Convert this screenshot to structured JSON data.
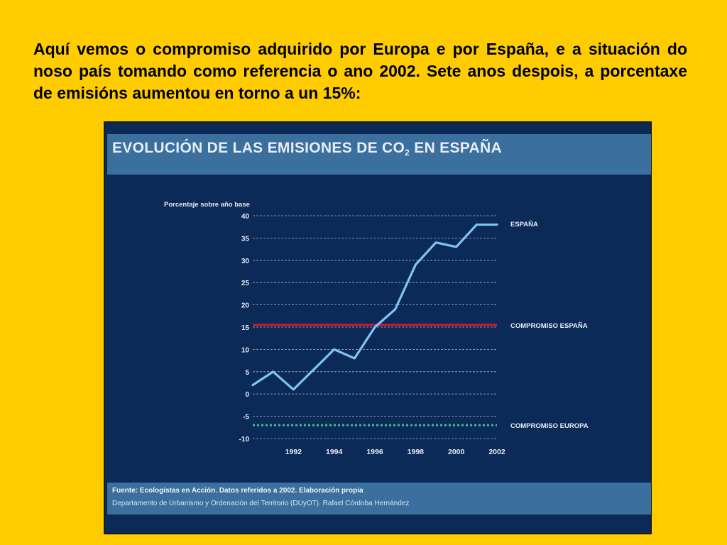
{
  "slide": {
    "text": "Aquí vemos o compromiso adquirido por Europa e por España, e a situación do noso país tomando como referencia o ano 2002. Sete anos despois, a porcentaxe de emisións aumentou en torno a un 15%:"
  },
  "panel": {
    "title_main": "EVOLUCIÓN DE LAS EMISIONES DE CO",
    "title_sub": "2",
    "title_end": " EN ESPAÑA",
    "footer_source": "Fuente: Ecologistas en Acción. Datos referidos a 2002. Elaboración propia",
    "footer_dept": "Departamento de Urbanismo y Ordenación del Territorio (DUyOT). Rafael Córdoba Hernández"
  },
  "chart_data": {
    "type": "line",
    "ylabel": "Porcentaje sobre año base",
    "ylim": [
      -10,
      40
    ],
    "yticks": [
      40,
      35,
      30,
      25,
      20,
      15,
      10,
      5,
      0,
      -5,
      -10
    ],
    "xlim": [
      1990,
      2002
    ],
    "xticks": [
      1992,
      1994,
      1996,
      1998,
      2000,
      2002
    ],
    "grid": true,
    "series": [
      {
        "name": "ESPAÑA",
        "color": "#7fc4f2",
        "x": [
          1990,
          1991,
          1992,
          1993,
          1994,
          1995,
          1996,
          1997,
          1998,
          1999,
          2000,
          2001,
          2002
        ],
        "values": [
          2,
          5,
          1,
          5.5,
          10,
          8,
          15,
          19,
          29,
          34,
          33,
          38,
          38
        ]
      }
    ],
    "reference_lines": [
      {
        "name": "COMPROMISO ESPAÑA",
        "value": 15.5,
        "color": "#d0192a",
        "style": "solid"
      },
      {
        "name": "COMPROMISO EUROPA",
        "value": -7,
        "color": "#3fbf8a",
        "style": "dotted"
      }
    ]
  }
}
